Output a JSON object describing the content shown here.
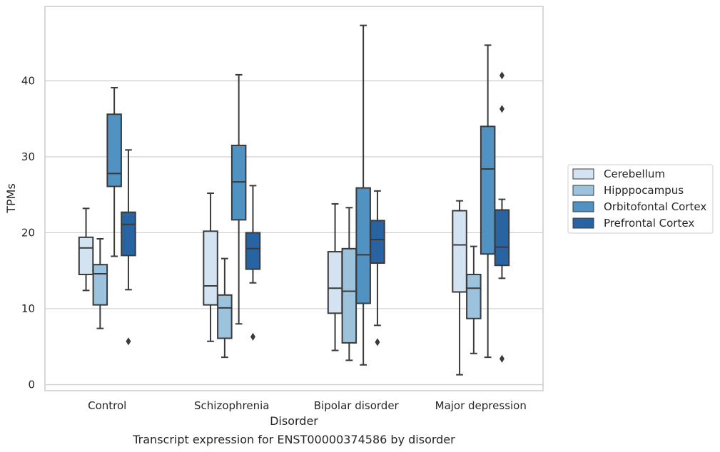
{
  "chart_data": {
    "type": "box",
    "caption": "Transcript expression for ENST00000374586 by disorder",
    "xlabel": "Disorder",
    "ylabel": "TPMs",
    "ylim": [
      -0.8,
      49.8
    ],
    "yticks": [
      0,
      10,
      20,
      30,
      40
    ],
    "grid": "horizontal",
    "legend_placement": "right",
    "colors": {
      "Cerebellum": "#d4e3f2",
      "Hipppocampus": "#9cc3dd",
      "Orbitofontal Cortex": "#5092c2",
      "Prefrontal Cortex": "#2863a2",
      "line": "#3a3a3a",
      "grid": "#cccccc"
    },
    "categories": [
      "Control",
      "Schizophrenia",
      "Bipolar disorder",
      "Major depression"
    ],
    "series": [
      {
        "name": "Cerebellum",
        "boxes": [
          {
            "whisker_low": 12.4,
            "q1": 14.5,
            "median": 18.0,
            "q3": 19.4,
            "whisker_high": 23.2,
            "outliers": []
          },
          {
            "whisker_low": 5.7,
            "q1": 10.5,
            "median": 13.0,
            "q3": 20.2,
            "whisker_high": 25.2,
            "outliers": []
          },
          {
            "whisker_low": 4.5,
            "q1": 9.4,
            "median": 12.7,
            "q3": 17.5,
            "whisker_high": 23.8,
            "outliers": []
          },
          {
            "whisker_low": 1.3,
            "q1": 12.2,
            "median": 18.4,
            "q3": 22.9,
            "whisker_high": 24.2,
            "outliers": []
          }
        ]
      },
      {
        "name": "Hipppocampus",
        "boxes": [
          {
            "whisker_low": 7.4,
            "q1": 10.5,
            "median": 14.6,
            "q3": 15.8,
            "whisker_high": 19.2,
            "outliers": []
          },
          {
            "whisker_low": 3.6,
            "q1": 6.1,
            "median": 10.1,
            "q3": 11.8,
            "whisker_high": 16.6,
            "outliers": []
          },
          {
            "whisker_low": 3.2,
            "q1": 5.5,
            "median": 12.3,
            "q3": 17.9,
            "whisker_high": 23.3,
            "outliers": []
          },
          {
            "whisker_low": 4.1,
            "q1": 8.7,
            "median": 12.7,
            "q3": 14.5,
            "whisker_high": 18.2,
            "outliers": []
          }
        ]
      },
      {
        "name": "Orbitofontal Cortex",
        "boxes": [
          {
            "whisker_low": 16.9,
            "q1": 26.1,
            "median": 27.8,
            "q3": 35.6,
            "whisker_high": 39.1,
            "outliers": []
          },
          {
            "whisker_low": 8.0,
            "q1": 21.7,
            "median": 26.7,
            "q3": 31.5,
            "whisker_high": 40.8,
            "outliers": []
          },
          {
            "whisker_low": 2.6,
            "q1": 10.7,
            "median": 17.1,
            "q3": 25.9,
            "whisker_high": 47.3,
            "outliers": []
          },
          {
            "whisker_low": 3.6,
            "q1": 17.2,
            "median": 28.4,
            "q3": 34.0,
            "whisker_high": 44.7,
            "outliers": []
          }
        ]
      },
      {
        "name": "Prefrontal Cortex",
        "boxes": [
          {
            "whisker_low": 12.5,
            "q1": 17.0,
            "median": 21.1,
            "q3": 22.7,
            "whisker_high": 30.9,
            "outliers": [
              5.7
            ]
          },
          {
            "whisker_low": 13.4,
            "q1": 15.2,
            "median": 17.9,
            "q3": 20.0,
            "whisker_high": 26.2,
            "outliers": [
              6.3
            ]
          },
          {
            "whisker_low": 7.8,
            "q1": 16.0,
            "median": 19.1,
            "q3": 21.6,
            "whisker_high": 25.5,
            "outliers": [
              5.6
            ]
          },
          {
            "whisker_low": 14.0,
            "q1": 15.7,
            "median": 18.1,
            "q3": 23.0,
            "whisker_high": 24.4,
            "outliers": [
              3.4,
              36.3,
              40.7
            ]
          }
        ]
      }
    ]
  }
}
